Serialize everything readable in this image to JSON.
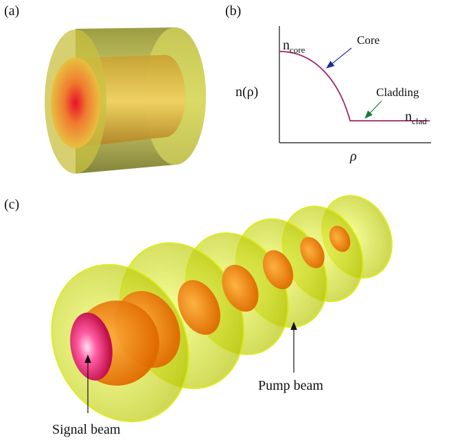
{
  "panels": {
    "a": {
      "label": "(a)"
    },
    "b": {
      "label": "(b)",
      "y_axis_label": "n(ρ)",
      "x_axis_label": "ρ",
      "n_core": {
        "base": "n",
        "sub": "core"
      },
      "n_clad": {
        "base": "n",
        "sub": "clad"
      },
      "core_annotation": "Core",
      "cladding_annotation": "Cladding"
    },
    "c": {
      "label": "(c)",
      "pump_annotation": "Pump beam",
      "signal_annotation": "Signal beam"
    }
  }
}
